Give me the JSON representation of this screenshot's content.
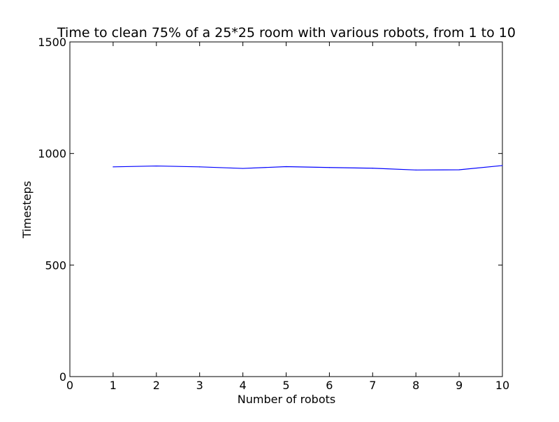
{
  "chart_data": {
    "type": "line",
    "title": "Time to clean 75% of a 25*25 room with various robots, from 1 to 10",
    "xlabel": "Number of robots",
    "ylabel": "Timesteps",
    "xlim": [
      0,
      10
    ],
    "ylim": [
      0,
      1500
    ],
    "xticks": [
      0,
      1,
      2,
      3,
      4,
      5,
      6,
      7,
      8,
      9,
      10
    ],
    "yticks": [
      0,
      500,
      1000,
      1500
    ],
    "grid": false,
    "line_color": "#0000ff",
    "series": [
      {
        "x": [
          1,
          2,
          3,
          4,
          5,
          6,
          7,
          8,
          9,
          10
        ],
        "values": [
          940,
          944,
          940,
          933,
          941,
          937,
          934,
          926,
          927,
          946
        ]
      }
    ]
  }
}
